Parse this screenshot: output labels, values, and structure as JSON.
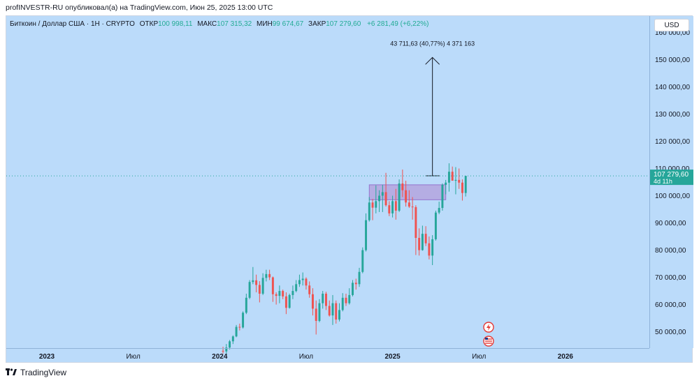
{
  "publish_line": "profINVESTR-RU опубликовал(а) на TradingView.com, Июн 25, 2025 13:00 UTC",
  "legend": {
    "symbol": "Биткоин / Доллар США · 1Н · CRYPTO",
    "open_label": "ОТКР",
    "open": "100 998,11",
    "high_label": "МАКС",
    "high": "107 315,32",
    "low_label": "МИН",
    "low": "99 674,67",
    "close_label": "ЗАКР",
    "close": "107 279,60",
    "change": "+6 281,49 (+6,22%)"
  },
  "currency_button": "USD",
  "footer": {
    "brand": "TradingView"
  },
  "colors": {
    "background": "#bbdbfa",
    "up": "#26a69a",
    "down": "#ef5350",
    "zone": "#b39ddb",
    "price_tag": "#26a69a"
  },
  "chart_data": {
    "type": "candlestick",
    "timeframe": "1W",
    "y_axis": {
      "ylim": [
        44000,
        166000
      ],
      "ticks": [
        {
          "value": 50000,
          "label": "50 000,00"
        },
        {
          "value": 60000,
          "label": "60 000,00"
        },
        {
          "value": 70000,
          "label": "70 000,00"
        },
        {
          "value": 80000,
          "label": "80 000,00"
        },
        {
          "value": 90000,
          "label": "90 000,00"
        },
        {
          "value": 100000,
          "label": "100 000,00"
        },
        {
          "value": 110000,
          "label": "110 000,00"
        },
        {
          "value": 120000,
          "label": "120 000,00"
        },
        {
          "value": 130000,
          "label": "130 000,00"
        },
        {
          "value": 140000,
          "label": "140 000,00"
        },
        {
          "value": 150000,
          "label": "150 000,00"
        },
        {
          "value": 160000,
          "label": "160 000,00"
        }
      ]
    },
    "x_axis": {
      "ticks": [
        {
          "label": "2023",
          "bold": true,
          "week": 0
        },
        {
          "label": "Июл",
          "bold": false,
          "week": 26
        },
        {
          "label": "2024",
          "bold": true,
          "week": 52
        },
        {
          "label": "Июл",
          "bold": false,
          "week": 78
        },
        {
          "label": "2025",
          "bold": true,
          "week": 104
        },
        {
          "label": "Июл",
          "bold": false,
          "week": 130
        },
        {
          "label": "2026",
          "bold": true,
          "week": 156
        }
      ],
      "total_weeks": 176
    },
    "current_price": {
      "value": 107279.6,
      "label": "107 279,60",
      "countdown": "4d 11h"
    },
    "demand_zone": {
      "from": 98500,
      "to": 104000,
      "start_week": 97,
      "end_week": 120
    },
    "projection": {
      "from": 107300,
      "to": 150800,
      "week": 116,
      "label": "43 711,63 (40,77%) 4 371 163"
    },
    "candles": [
      {
        "w": 53,
        "o": 43000,
        "h": 44500,
        "l": 42000,
        "c": 42800
      },
      {
        "w": 54,
        "o": 42800,
        "h": 45500,
        "l": 42000,
        "c": 44200
      },
      {
        "w": 55,
        "o": 44200,
        "h": 47000,
        "l": 43500,
        "c": 46500
      },
      {
        "w": 56,
        "o": 46500,
        "h": 48700,
        "l": 45500,
        "c": 48300
      },
      {
        "w": 57,
        "o": 48300,
        "h": 52500,
        "l": 48000,
        "c": 51800
      },
      {
        "w": 58,
        "o": 51800,
        "h": 53000,
        "l": 50500,
        "c": 51600
      },
      {
        "w": 59,
        "o": 51600,
        "h": 57500,
        "l": 51200,
        "c": 57000
      },
      {
        "w": 60,
        "o": 57000,
        "h": 64000,
        "l": 56500,
        "c": 62500
      },
      {
        "w": 61,
        "o": 62500,
        "h": 69000,
        "l": 62000,
        "c": 68300
      },
      {
        "w": 62,
        "o": 68300,
        "h": 73800,
        "l": 67500,
        "c": 68900
      },
      {
        "w": 63,
        "o": 68900,
        "h": 71000,
        "l": 64500,
        "c": 67200
      },
      {
        "w": 64,
        "o": 67200,
        "h": 68600,
        "l": 60800,
        "c": 64000
      },
      {
        "w": 65,
        "o": 64000,
        "h": 71500,
        "l": 63500,
        "c": 69800
      },
      {
        "w": 66,
        "o": 69800,
        "h": 72800,
        "l": 68500,
        "c": 71200
      },
      {
        "w": 67,
        "o": 71200,
        "h": 72800,
        "l": 69000,
        "c": 70000
      },
      {
        "w": 68,
        "o": 70000,
        "h": 70300,
        "l": 61000,
        "c": 63800
      },
      {
        "w": 69,
        "o": 63800,
        "h": 64500,
        "l": 60000,
        "c": 63200
      },
      {
        "w": 70,
        "o": 63200,
        "h": 67000,
        "l": 60500,
        "c": 65000
      },
      {
        "w": 71,
        "o": 65000,
        "h": 65500,
        "l": 62000,
        "c": 63000
      },
      {
        "w": 72,
        "o": 63000,
        "h": 64500,
        "l": 56500,
        "c": 58800
      },
      {
        "w": 73,
        "o": 58800,
        "h": 64000,
        "l": 58500,
        "c": 63500
      },
      {
        "w": 74,
        "o": 63500,
        "h": 67000,
        "l": 62000,
        "c": 65000
      },
      {
        "w": 75,
        "o": 65000,
        "h": 69000,
        "l": 64500,
        "c": 67500
      },
      {
        "w": 76,
        "o": 67500,
        "h": 71000,
        "l": 66500,
        "c": 69000
      },
      {
        "w": 77,
        "o": 69000,
        "h": 71800,
        "l": 67000,
        "c": 69500
      },
      {
        "w": 78,
        "o": 69500,
        "h": 70000,
        "l": 65500,
        "c": 67000
      },
      {
        "w": 79,
        "o": 67000,
        "h": 68500,
        "l": 62500,
        "c": 63800
      },
      {
        "w": 80,
        "o": 63800,
        "h": 66000,
        "l": 56000,
        "c": 58500
      },
      {
        "w": 81,
        "o": 58500,
        "h": 61500,
        "l": 49000,
        "c": 54000
      },
      {
        "w": 82,
        "o": 54000,
        "h": 62000,
        "l": 53500,
        "c": 60500
      },
      {
        "w": 83,
        "o": 60500,
        "h": 65000,
        "l": 58500,
        "c": 64000
      },
      {
        "w": 84,
        "o": 64000,
        "h": 64700,
        "l": 58000,
        "c": 59500
      },
      {
        "w": 85,
        "o": 59500,
        "h": 61500,
        "l": 55600,
        "c": 56000
      },
      {
        "w": 86,
        "o": 56000,
        "h": 63500,
        "l": 52500,
        "c": 60500
      },
      {
        "w": 87,
        "o": 60500,
        "h": 61500,
        "l": 53000,
        "c": 54500
      },
      {
        "w": 88,
        "o": 54500,
        "h": 60500,
        "l": 53800,
        "c": 58000
      },
      {
        "w": 89,
        "o": 58000,
        "h": 64200,
        "l": 57500,
        "c": 62500
      },
      {
        "w": 90,
        "o": 62500,
        "h": 64000,
        "l": 59500,
        "c": 60500
      },
      {
        "w": 91,
        "o": 60500,
        "h": 66000,
        "l": 60000,
        "c": 63500
      },
      {
        "w": 92,
        "o": 63500,
        "h": 69000,
        "l": 63000,
        "c": 68000
      },
      {
        "w": 93,
        "o": 68000,
        "h": 69500,
        "l": 65500,
        "c": 67500
      },
      {
        "w": 94,
        "o": 67500,
        "h": 73500,
        "l": 66500,
        "c": 72000
      },
      {
        "w": 95,
        "o": 72000,
        "h": 81000,
        "l": 71500,
        "c": 80000
      },
      {
        "w": 96,
        "o": 80000,
        "h": 93500,
        "l": 79500,
        "c": 91000
      },
      {
        "w": 97,
        "o": 91000,
        "h": 99500,
        "l": 90500,
        "c": 97500
      },
      {
        "w": 98,
        "o": 97500,
        "h": 98800,
        "l": 91000,
        "c": 95600
      },
      {
        "w": 99,
        "o": 95600,
        "h": 103800,
        "l": 93500,
        "c": 98000
      },
      {
        "w": 100,
        "o": 98000,
        "h": 102000,
        "l": 94000,
        "c": 100000
      },
      {
        "w": 101,
        "o": 100000,
        "h": 104000,
        "l": 94000,
        "c": 101300
      },
      {
        "w": 102,
        "o": 101300,
        "h": 108400,
        "l": 96000,
        "c": 96500
      },
      {
        "w": 103,
        "o": 96500,
        "h": 98000,
        "l": 92500,
        "c": 93500
      },
      {
        "w": 104,
        "o": 93500,
        "h": 100000,
        "l": 92000,
        "c": 98000
      },
      {
        "w": 105,
        "o": 98000,
        "h": 102500,
        "l": 91200,
        "c": 94500
      },
      {
        "w": 106,
        "o": 94500,
        "h": 106000,
        "l": 94000,
        "c": 104500
      },
      {
        "w": 107,
        "o": 104500,
        "h": 109600,
        "l": 99500,
        "c": 102000
      },
      {
        "w": 108,
        "o": 102000,
        "h": 105500,
        "l": 96000,
        "c": 97500
      },
      {
        "w": 109,
        "o": 97500,
        "h": 102000,
        "l": 95500,
        "c": 96000
      },
      {
        "w": 110,
        "o": 96000,
        "h": 99500,
        "l": 91200,
        "c": 95800
      },
      {
        "w": 111,
        "o": 95800,
        "h": 96500,
        "l": 78200,
        "c": 84500
      },
      {
        "w": 112,
        "o": 84500,
        "h": 88000,
        "l": 78000,
        "c": 80000
      },
      {
        "w": 113,
        "o": 80000,
        "h": 89000,
        "l": 79800,
        "c": 86000
      },
      {
        "w": 114,
        "o": 86000,
        "h": 88800,
        "l": 81500,
        "c": 82500
      },
      {
        "w": 115,
        "o": 82500,
        "h": 85000,
        "l": 76600,
        "c": 78000
      },
      {
        "w": 116,
        "o": 78000,
        "h": 85500,
        "l": 74500,
        "c": 84000
      },
      {
        "w": 117,
        "o": 84000,
        "h": 94500,
        "l": 83500,
        "c": 93800
      },
      {
        "w": 118,
        "o": 93800,
        "h": 97800,
        "l": 93200,
        "c": 95500
      },
      {
        "w": 119,
        "o": 95500,
        "h": 104500,
        "l": 94500,
        "c": 104000
      },
      {
        "w": 120,
        "o": 104000,
        "h": 105800,
        "l": 100500,
        "c": 104800
      },
      {
        "w": 121,
        "o": 104800,
        "h": 111900,
        "l": 101500,
        "c": 108800
      },
      {
        "w": 122,
        "o": 108800,
        "h": 110700,
        "l": 106000,
        "c": 105500
      },
      {
        "w": 123,
        "o": 105500,
        "h": 110500,
        "l": 100500,
        "c": 105800
      },
      {
        "w": 124,
        "o": 105800,
        "h": 110000,
        "l": 102500,
        "c": 104800
      },
      {
        "w": 125,
        "o": 104800,
        "h": 106000,
        "l": 98200,
        "c": 101000
      },
      {
        "w": 126,
        "o": 101000,
        "h": 107300,
        "l": 99700,
        "c": 107280
      }
    ]
  }
}
